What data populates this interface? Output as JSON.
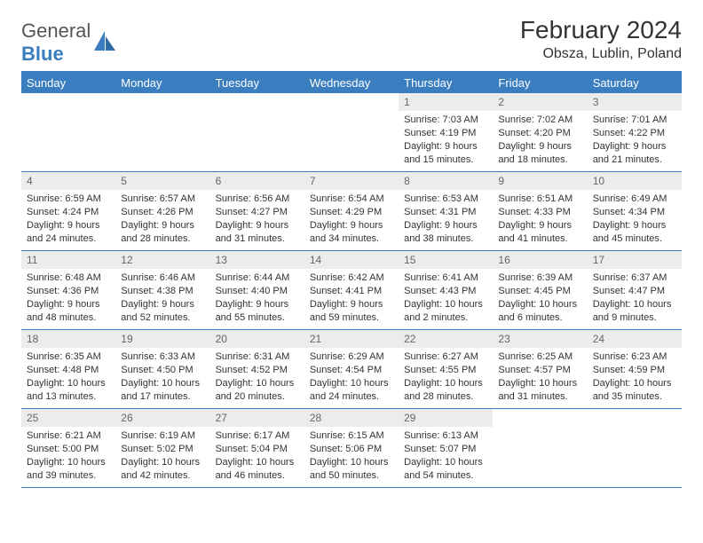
{
  "brand": {
    "part1": "General",
    "part2": "Blue"
  },
  "title": "February 2024",
  "location": "Obsza, Lublin, Poland",
  "colors": {
    "accent": "#3b7ec0",
    "daynum_bg": "#ececec",
    "text": "#333333",
    "muted": "#666666",
    "bg": "#ffffff"
  },
  "typography": {
    "title_fontsize": 28,
    "location_fontsize": 16,
    "weekday_fontsize": 13,
    "daynum_fontsize": 12,
    "body_fontsize": 11
  },
  "calendar": {
    "weekdays": [
      "Sunday",
      "Monday",
      "Tuesday",
      "Wednesday",
      "Thursday",
      "Friday",
      "Saturday"
    ],
    "weeks": [
      [
        {
          "empty": true
        },
        {
          "empty": true
        },
        {
          "empty": true
        },
        {
          "empty": true
        },
        {
          "num": "1",
          "sunrise": "Sunrise: 7:03 AM",
          "sunset": "Sunset: 4:19 PM",
          "day1": "Daylight: 9 hours",
          "day2": "and 15 minutes."
        },
        {
          "num": "2",
          "sunrise": "Sunrise: 7:02 AM",
          "sunset": "Sunset: 4:20 PM",
          "day1": "Daylight: 9 hours",
          "day2": "and 18 minutes."
        },
        {
          "num": "3",
          "sunrise": "Sunrise: 7:01 AM",
          "sunset": "Sunset: 4:22 PM",
          "day1": "Daylight: 9 hours",
          "day2": "and 21 minutes."
        }
      ],
      [
        {
          "num": "4",
          "sunrise": "Sunrise: 6:59 AM",
          "sunset": "Sunset: 4:24 PM",
          "day1": "Daylight: 9 hours",
          "day2": "and 24 minutes."
        },
        {
          "num": "5",
          "sunrise": "Sunrise: 6:57 AM",
          "sunset": "Sunset: 4:26 PM",
          "day1": "Daylight: 9 hours",
          "day2": "and 28 minutes."
        },
        {
          "num": "6",
          "sunrise": "Sunrise: 6:56 AM",
          "sunset": "Sunset: 4:27 PM",
          "day1": "Daylight: 9 hours",
          "day2": "and 31 minutes."
        },
        {
          "num": "7",
          "sunrise": "Sunrise: 6:54 AM",
          "sunset": "Sunset: 4:29 PM",
          "day1": "Daylight: 9 hours",
          "day2": "and 34 minutes."
        },
        {
          "num": "8",
          "sunrise": "Sunrise: 6:53 AM",
          "sunset": "Sunset: 4:31 PM",
          "day1": "Daylight: 9 hours",
          "day2": "and 38 minutes."
        },
        {
          "num": "9",
          "sunrise": "Sunrise: 6:51 AM",
          "sunset": "Sunset: 4:33 PM",
          "day1": "Daylight: 9 hours",
          "day2": "and 41 minutes."
        },
        {
          "num": "10",
          "sunrise": "Sunrise: 6:49 AM",
          "sunset": "Sunset: 4:34 PM",
          "day1": "Daylight: 9 hours",
          "day2": "and 45 minutes."
        }
      ],
      [
        {
          "num": "11",
          "sunrise": "Sunrise: 6:48 AM",
          "sunset": "Sunset: 4:36 PM",
          "day1": "Daylight: 9 hours",
          "day2": "and 48 minutes."
        },
        {
          "num": "12",
          "sunrise": "Sunrise: 6:46 AM",
          "sunset": "Sunset: 4:38 PM",
          "day1": "Daylight: 9 hours",
          "day2": "and 52 minutes."
        },
        {
          "num": "13",
          "sunrise": "Sunrise: 6:44 AM",
          "sunset": "Sunset: 4:40 PM",
          "day1": "Daylight: 9 hours",
          "day2": "and 55 minutes."
        },
        {
          "num": "14",
          "sunrise": "Sunrise: 6:42 AM",
          "sunset": "Sunset: 4:41 PM",
          "day1": "Daylight: 9 hours",
          "day2": "and 59 minutes."
        },
        {
          "num": "15",
          "sunrise": "Sunrise: 6:41 AM",
          "sunset": "Sunset: 4:43 PM",
          "day1": "Daylight: 10 hours",
          "day2": "and 2 minutes."
        },
        {
          "num": "16",
          "sunrise": "Sunrise: 6:39 AM",
          "sunset": "Sunset: 4:45 PM",
          "day1": "Daylight: 10 hours",
          "day2": "and 6 minutes."
        },
        {
          "num": "17",
          "sunrise": "Sunrise: 6:37 AM",
          "sunset": "Sunset: 4:47 PM",
          "day1": "Daylight: 10 hours",
          "day2": "and 9 minutes."
        }
      ],
      [
        {
          "num": "18",
          "sunrise": "Sunrise: 6:35 AM",
          "sunset": "Sunset: 4:48 PM",
          "day1": "Daylight: 10 hours",
          "day2": "and 13 minutes."
        },
        {
          "num": "19",
          "sunrise": "Sunrise: 6:33 AM",
          "sunset": "Sunset: 4:50 PM",
          "day1": "Daylight: 10 hours",
          "day2": "and 17 minutes."
        },
        {
          "num": "20",
          "sunrise": "Sunrise: 6:31 AM",
          "sunset": "Sunset: 4:52 PM",
          "day1": "Daylight: 10 hours",
          "day2": "and 20 minutes."
        },
        {
          "num": "21",
          "sunrise": "Sunrise: 6:29 AM",
          "sunset": "Sunset: 4:54 PM",
          "day1": "Daylight: 10 hours",
          "day2": "and 24 minutes."
        },
        {
          "num": "22",
          "sunrise": "Sunrise: 6:27 AM",
          "sunset": "Sunset: 4:55 PM",
          "day1": "Daylight: 10 hours",
          "day2": "and 28 minutes."
        },
        {
          "num": "23",
          "sunrise": "Sunrise: 6:25 AM",
          "sunset": "Sunset: 4:57 PM",
          "day1": "Daylight: 10 hours",
          "day2": "and 31 minutes."
        },
        {
          "num": "24",
          "sunrise": "Sunrise: 6:23 AM",
          "sunset": "Sunset: 4:59 PM",
          "day1": "Daylight: 10 hours",
          "day2": "and 35 minutes."
        }
      ],
      [
        {
          "num": "25",
          "sunrise": "Sunrise: 6:21 AM",
          "sunset": "Sunset: 5:00 PM",
          "day1": "Daylight: 10 hours",
          "day2": "and 39 minutes."
        },
        {
          "num": "26",
          "sunrise": "Sunrise: 6:19 AM",
          "sunset": "Sunset: 5:02 PM",
          "day1": "Daylight: 10 hours",
          "day2": "and 42 minutes."
        },
        {
          "num": "27",
          "sunrise": "Sunrise: 6:17 AM",
          "sunset": "Sunset: 5:04 PM",
          "day1": "Daylight: 10 hours",
          "day2": "and 46 minutes."
        },
        {
          "num": "28",
          "sunrise": "Sunrise: 6:15 AM",
          "sunset": "Sunset: 5:06 PM",
          "day1": "Daylight: 10 hours",
          "day2": "and 50 minutes."
        },
        {
          "num": "29",
          "sunrise": "Sunrise: 6:13 AM",
          "sunset": "Sunset: 5:07 PM",
          "day1": "Daylight: 10 hours",
          "day2": "and 54 minutes."
        },
        {
          "empty": true
        },
        {
          "empty": true
        }
      ]
    ]
  }
}
